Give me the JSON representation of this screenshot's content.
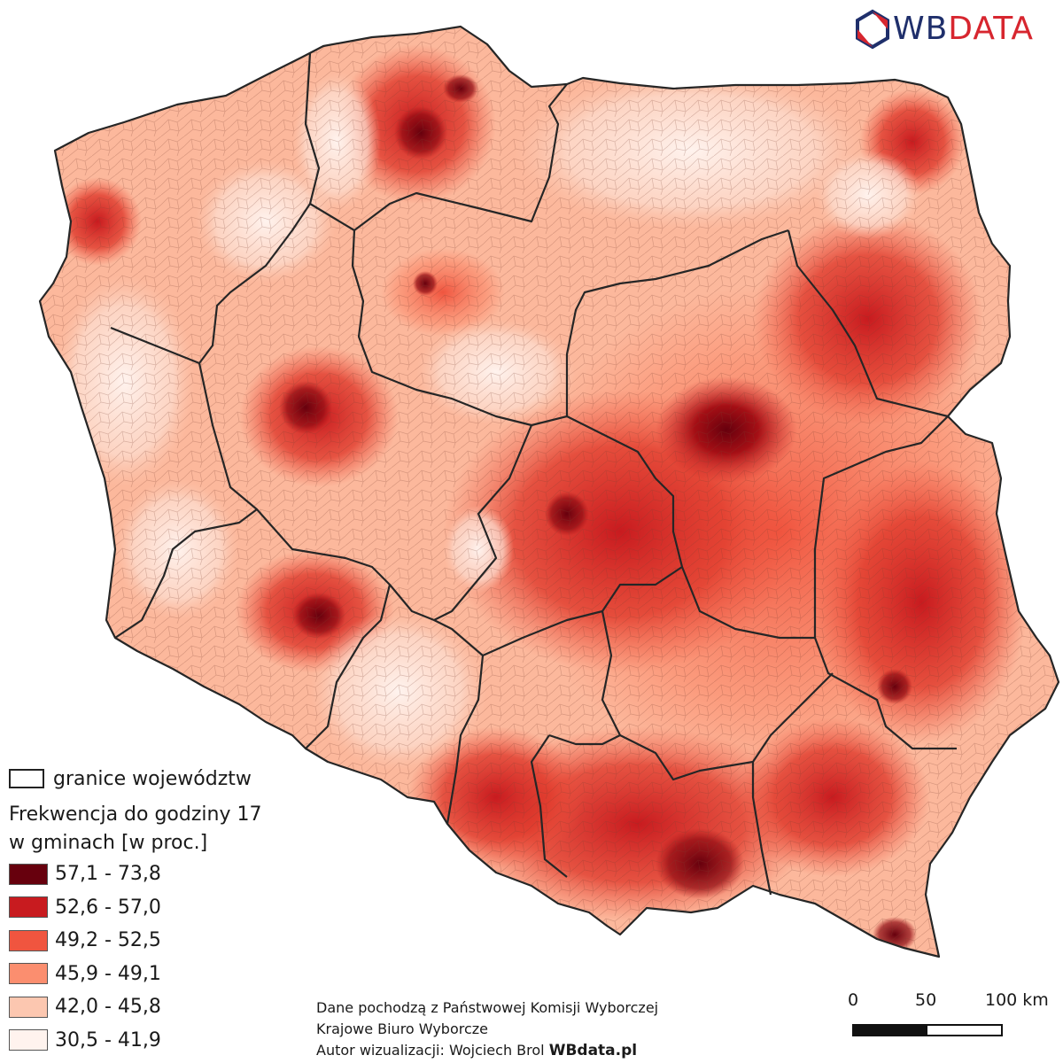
{
  "brand": {
    "logo_wb": "WB",
    "logo_data": "DATA",
    "brand_navy": "#1f2f6b",
    "brand_red": "#d7262f"
  },
  "legend": {
    "border_label": "granice województw",
    "title_line1": "Frekwencja do godziny 17",
    "title_line2": "w gminach [w proc.]",
    "classes": [
      {
        "label": "57,1 - 73,8",
        "color": "#67000d"
      },
      {
        "label": "52,6 - 57,0",
        "color": "#c81b1f"
      },
      {
        "label": "49,2 - 52,5",
        "color": "#f0553f"
      },
      {
        "label": "45,9 - 49,1",
        "color": "#fb8e6f"
      },
      {
        "label": "42,0 - 45,8",
        "color": "#fcc7b0"
      },
      {
        "label": "30,5 - 41,9",
        "color": "#fff3ee"
      }
    ]
  },
  "credits": {
    "line1": "Dane pochodzą z Państwowej Komisji Wyborczej",
    "line2": "Krajowe Biuro Wyborcze",
    "line3_prefix": "Autor wizualizacji: Wojciech Brol ",
    "line3_bold": "WBdata.pl"
  },
  "scale": {
    "label_0": "0",
    "label_50": "50",
    "label_100": "100 km"
  }
}
